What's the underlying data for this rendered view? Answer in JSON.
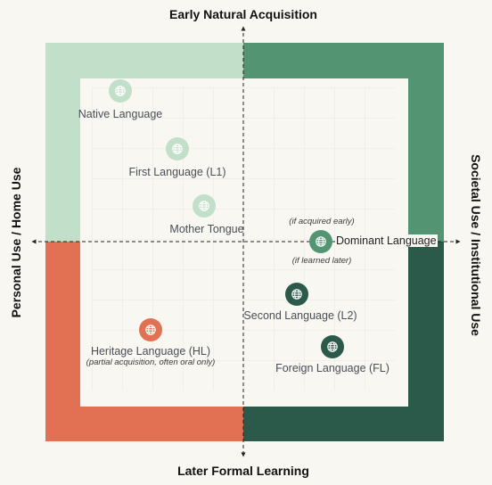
{
  "axes": {
    "top": "Early Natural Acquisition",
    "bottom": "Later Formal Learning",
    "left": "Personal Use / Home Use",
    "right": "Societal Use / Institutional Use"
  },
  "colors": {
    "quadrant_top_left": "#c2dfc9",
    "quadrant_top_right": "#539473",
    "quadrant_bottom_left": "#e27153",
    "quadrant_bottom_right": "#2c5a4a",
    "inner_panel": "#f8f7f1"
  },
  "nodes": {
    "native": {
      "label": "Native Language",
      "icon": "globe-icon",
      "color": "#c2dfc9"
    },
    "first": {
      "label": "First Language (L1)",
      "icon": "globe-icon",
      "color": "#c2dfc9"
    },
    "mother": {
      "label": "Mother Tongue",
      "icon": "globe-icon",
      "color": "#c2dfc9"
    },
    "dominant": {
      "label": "Dominant Language",
      "note_above": "(if acquired early)",
      "note_below": "(if learned later)",
      "icon": "globe-icon",
      "color": "#539473"
    },
    "second": {
      "label": "Second Language (L2)",
      "icon": "globe-icon",
      "color": "#2c5a4a"
    },
    "heritage": {
      "label": "Heritage Language (HL)",
      "note": "(partial acquisition, often oral only)",
      "icon": "globe-icon",
      "color": "#e27153"
    },
    "foreign": {
      "label": "Foreign Language (FL)",
      "icon": "globe-icon",
      "color": "#2c5a4a"
    }
  }
}
